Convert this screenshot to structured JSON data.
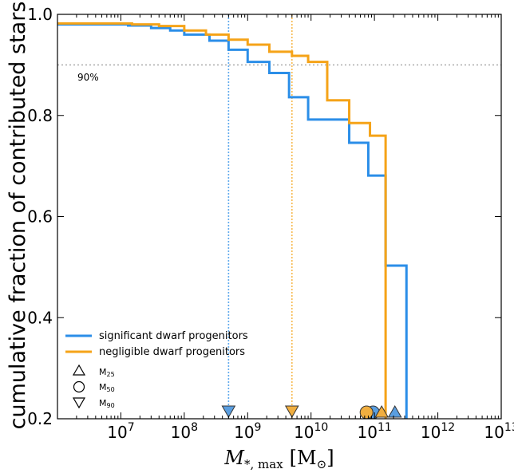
{
  "chart_data": {
    "type": "line",
    "xlabel_main": "M",
    "xlabel_sub": "*, max",
    "xlabel_unit_open": "[M",
    "xlabel_unit_sym": "⊙",
    "xlabel_unit_close": "]",
    "ylabel": "cumulative fraction of contributed stars",
    "xscale": "log",
    "xlim": [
      1000000.0,
      10000000000000.0
    ],
    "ylim": [
      0.2,
      1.0
    ],
    "x_ticks": [
      {
        "value": 10000000.0,
        "base": "10",
        "exp": "7"
      },
      {
        "value": 100000000.0,
        "base": "10",
        "exp": "8"
      },
      {
        "value": 1000000000.0,
        "base": "10",
        "exp": "9"
      },
      {
        "value": 10000000000.0,
        "base": "10",
        "exp": "10"
      },
      {
        "value": 100000000000.0,
        "base": "10",
        "exp": "11"
      },
      {
        "value": 1000000000000.0,
        "base": "10",
        "exp": "12"
      },
      {
        "value": 10000000000000.0,
        "base": "10",
        "exp": "13"
      }
    ],
    "y_ticks": [
      {
        "value": 0.2,
        "label": "0.2"
      },
      {
        "value": 0.4,
        "label": "0.4"
      },
      {
        "value": 0.6,
        "label": "0.6"
      },
      {
        "value": 0.8,
        "label": "0.8"
      },
      {
        "value": 1.0,
        "label": "1.0"
      }
    ],
    "reference_line": {
      "y": 0.9,
      "label": "90%",
      "color": "#aaaaaa"
    },
    "series": [
      {
        "name": "significant dwarf progenitors",
        "color": "#2b8ee8",
        "marker_color": "#5a9ee0",
        "x": [
          1000000.0,
          13000000.0,
          30000000.0,
          60000000.0,
          100000000.0,
          250000000.0,
          500000000.0,
          1000000000.0,
          2200000000.0,
          4500000000.0,
          9000000000.0,
          40000000000.0,
          80000000000.0,
          150000000000.0,
          320000000000.0
        ],
        "y": [
          0.98,
          0.978,
          0.973,
          0.968,
          0.96,
          0.948,
          0.93,
          0.906,
          0.884,
          0.836,
          0.792,
          0.746,
          0.681,
          0.503,
          0.471
        ],
        "end_x": 320000000000.0,
        "vline_x": 500000000.0,
        "markers": {
          "m25": 210000000000.0,
          "m50": 95000000000.0,
          "m90": 500000000.0
        }
      },
      {
        "name": "negligible dwarf progenitors",
        "color": "#f5a318",
        "marker_color": "#f0ae40",
        "x": [
          1000000.0,
          15000000.0,
          40000000.0,
          100000000.0,
          220000000.0,
          500000000.0,
          1000000000.0,
          2200000000.0,
          5000000000.0,
          9000000000.0,
          18000000000.0,
          40000000000.0,
          85000000000.0,
          150000000000.0
        ],
        "y": [
          0.982,
          0.98,
          0.977,
          0.968,
          0.96,
          0.95,
          0.94,
          0.926,
          0.918,
          0.906,
          0.83,
          0.785,
          0.76,
          0.472
        ],
        "end_x": 150000000000.0,
        "vline_x": 5000000000.0,
        "markers": {
          "m25": 130000000000.0,
          "m50": 75000000000.0,
          "m90": 5000000000.0
        }
      }
    ],
    "legend": {
      "placement": "lower-left",
      "m25_main": "M",
      "m25_sub": "25",
      "m50_main": "M",
      "m50_sub": "50",
      "m90_main": "M",
      "m90_sub": "90"
    }
  }
}
